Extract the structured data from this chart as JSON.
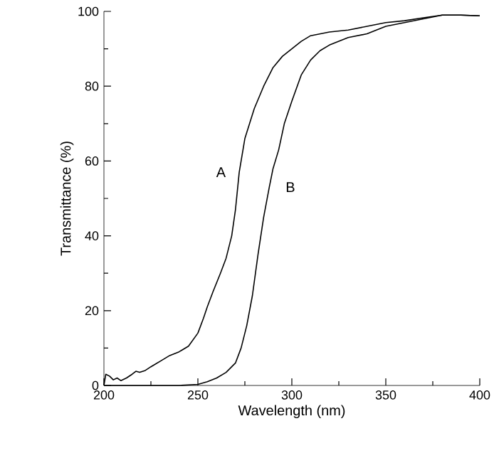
{
  "chart_data": {
    "type": "line",
    "xlabel": "Wavelength (nm)",
    "ylabel": "Transmittance (%)",
    "xlim": [
      200,
      400
    ],
    "ylim": [
      0,
      100
    ],
    "xticks": [
      200,
      250,
      300,
      350,
      400
    ],
    "yticks": [
      0,
      20,
      40,
      60,
      80,
      100
    ],
    "grid": false,
    "legend": false,
    "marker": "none",
    "line_style": "solid",
    "series": [
      {
        "name": "A",
        "color": "#000000",
        "x": [
          200,
          201,
          203,
          205,
          207,
          209,
          212,
          215,
          217,
          219,
          222,
          225,
          230,
          235,
          240,
          245,
          250,
          253,
          255,
          258,
          262,
          265,
          268,
          270,
          272,
          275,
          280,
          285,
          290,
          295,
          300,
          305,
          310,
          320,
          330,
          340,
          350,
          360,
          370,
          380,
          390,
          400
        ],
        "values": [
          0,
          3,
          2.5,
          1.5,
          2,
          1.3,
          2,
          3,
          3.8,
          3.5,
          4,
          5,
          6.5,
          8,
          9,
          10.5,
          14,
          18,
          21,
          25,
          30,
          34,
          40,
          47,
          57,
          66,
          74,
          80,
          85,
          88,
          90,
          92,
          93.5,
          94.5,
          95,
          96,
          97,
          97.5,
          98.3,
          99,
          99,
          98.8
        ]
      },
      {
        "name": "B",
        "color": "#000000",
        "x": [
          200,
          240,
          250,
          255,
          260,
          265,
          270,
          273,
          276,
          279,
          282,
          285,
          288,
          290,
          293,
          296,
          300,
          305,
          310,
          315,
          320,
          330,
          340,
          350,
          360,
          370,
          380,
          390,
          400
        ],
        "values": [
          0,
          0,
          0.3,
          1,
          2,
          3.5,
          6,
          10,
          16,
          24,
          35,
          45,
          53,
          58,
          63,
          70,
          76,
          83,
          87,
          89.5,
          91,
          93,
          94,
          96,
          97,
          98,
          99,
          99,
          98.8
        ]
      }
    ]
  }
}
